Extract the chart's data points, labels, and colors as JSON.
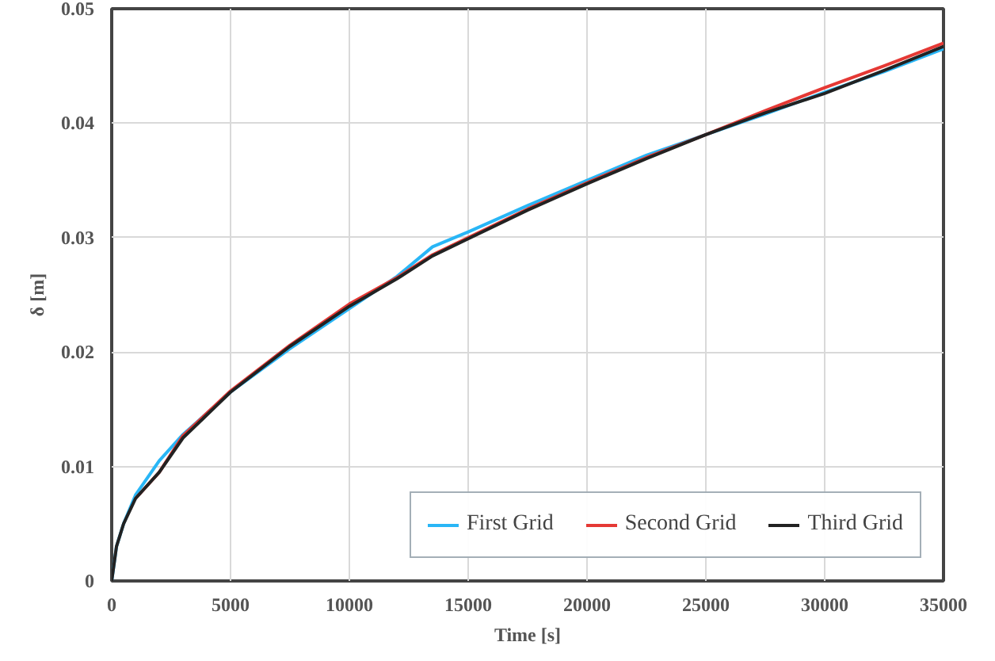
{
  "chart_data": {
    "type": "line",
    "xlabel": "Time [s]",
    "ylabel": "δ [m]",
    "x": [
      0,
      200,
      500,
      1000,
      2000,
      3000,
      5000,
      7500,
      10000,
      12000,
      13500,
      15000,
      17500,
      20000,
      22500,
      25000,
      27500,
      30000,
      32500,
      35000
    ],
    "series": [
      {
        "name": "First Grid",
        "color": "#29b6f6",
        "values": [
          0,
          0.003,
          0.005,
          0.0075,
          0.0105,
          0.0128,
          0.0165,
          0.0203,
          0.0238,
          0.0266,
          0.0292,
          0.0305,
          0.0328,
          0.035,
          0.0372,
          0.039,
          0.0408,
          0.0427,
          0.0445,
          0.0465
        ]
      },
      {
        "name": "Second Grid",
        "color": "#e53935",
        "values": [
          null,
          null,
          null,
          0.0072,
          0.0095,
          0.0127,
          0.0166,
          0.0206,
          0.0242,
          0.0265,
          0.0285,
          0.03,
          0.0325,
          0.0348,
          0.037,
          0.039,
          0.0411,
          0.0431,
          0.045,
          0.047
        ]
      },
      {
        "name": "Third Grid",
        "color": "#222222",
        "values": [
          0,
          0.003,
          0.005,
          0.0072,
          0.0095,
          0.0125,
          0.0165,
          0.0205,
          0.024,
          0.0264,
          0.0284,
          0.0299,
          0.0324,
          0.0347,
          0.0369,
          0.039,
          0.0409,
          0.0426,
          0.0446,
          0.0467
        ]
      }
    ],
    "xlim": [
      0,
      35000
    ],
    "xticks": [
      0,
      5000,
      10000,
      15000,
      20000,
      25000,
      30000,
      35000
    ],
    "ylim": [
      0,
      0.05
    ],
    "yticks": [
      0,
      0.01,
      0.02,
      0.03,
      0.04,
      0.05
    ],
    "grid": true,
    "legend": "bottom right",
    "line_style": "solid"
  }
}
